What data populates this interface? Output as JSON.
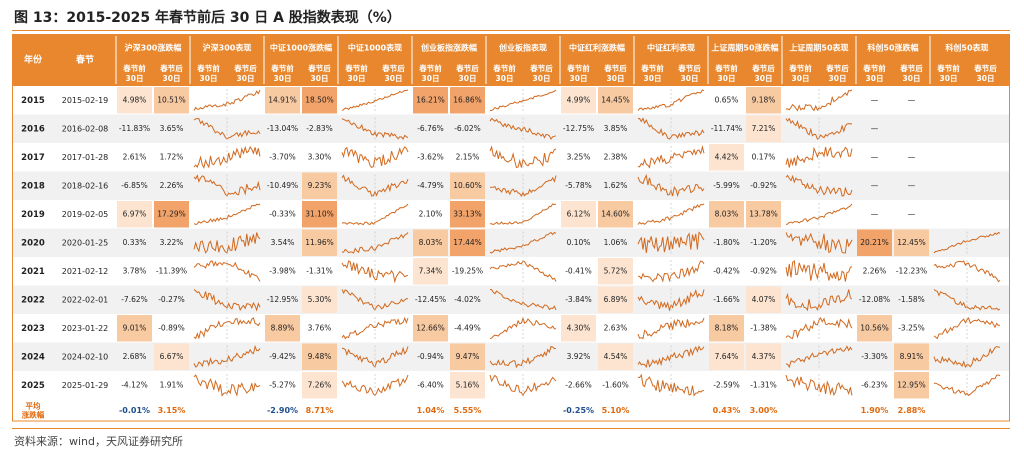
{
  "title": "图 13：2015-2025 年春节前后 30 日 A 股指数表现（%）",
  "source": "资料来源：wind，天风证券研究所",
  "colors": {
    "header_bg": "#e8872e",
    "header_text": "#ffffff",
    "stripe": "#f1f1f1",
    "heat_high": "#f2a36a",
    "heat_mid": "#f8caa2",
    "heat_low": "#fce4d0",
    "line": "#d2691e",
    "neg_text": "#1f4e8c",
    "pos_text": "#e06a10"
  },
  "table": {
    "col_year": "年份",
    "col_date": "春节",
    "groups": [
      {
        "name": "沪深300涨跌幅",
        "type": "pct"
      },
      {
        "name": "沪深300表现",
        "type": "spark"
      },
      {
        "name": "中证1000涨跌幅",
        "type": "pct"
      },
      {
        "name": "中证1000表现",
        "type": "spark"
      },
      {
        "name": "创业板指涨跌幅",
        "type": "pct"
      },
      {
        "name": "创业板指表现",
        "type": "spark"
      },
      {
        "name": "中证红利涨跌幅",
        "type": "pct"
      },
      {
        "name": "中证红利表现",
        "type": "spark"
      },
      {
        "name": "上证周期50涨跌幅",
        "type": "pct"
      },
      {
        "name": "上证周期50表现",
        "type": "spark"
      },
      {
        "name": "科创50涨跌幅",
        "type": "pct"
      },
      {
        "name": "科创50表现",
        "type": "spark"
      }
    ],
    "sub_before": "春节前30日",
    "sub_after": "春节后30日",
    "avg_label": "平均涨跌幅"
  },
  "chart_data": {
    "type": "table",
    "years": [
      "2015",
      "2016",
      "2017",
      "2018",
      "2019",
      "2020",
      "2021",
      "2022",
      "2023",
      "2024",
      "2025"
    ],
    "dates": [
      "2015-02-19",
      "2016-02-08",
      "2017-01-28",
      "2018-02-16",
      "2019-02-05",
      "2020-01-25",
      "2021-02-12",
      "2022-02-01",
      "2023-01-22",
      "2024-02-10",
      "2025-01-29"
    ],
    "series": [
      {
        "name": "沪深300",
        "before": [
          "4.98%",
          "-11.83%",
          "2.61%",
          "-6.85%",
          "6.97%",
          "0.33%",
          "3.78%",
          "-7.62%",
          "9.01%",
          "2.68%",
          "-4.12%"
        ],
        "after": [
          "10.51%",
          "3.65%",
          "1.72%",
          "2.26%",
          "17.29%",
          "3.22%",
          "-11.39%",
          "-0.27%",
          "-0.89%",
          "6.67%",
          "1.91%"
        ],
        "avg_before": "-0.01%",
        "avg_after": "3.15%"
      },
      {
        "name": "中证1000",
        "before": [
          "14.91%",
          "-13.04%",
          "-3.70%",
          "-10.49%",
          "-0.33%",
          "3.54%",
          "-3.98%",
          "-12.95%",
          "8.89%",
          "-9.42%",
          "-5.27%"
        ],
        "after": [
          "18.50%",
          "-2.83%",
          "3.30%",
          "9.23%",
          "31.10%",
          "11.96%",
          "-1.31%",
          "5.30%",
          "3.76%",
          "9.48%",
          "7.26%"
        ],
        "avg_before": "-2.90%",
        "avg_after": "8.71%"
      },
      {
        "name": "创业板指",
        "before": [
          "16.21%",
          "-6.76%",
          "-3.62%",
          "-4.79%",
          "2.10%",
          "8.03%",
          "7.34%",
          "-12.45%",
          "12.66%",
          "-0.94%",
          "-6.40%"
        ],
        "after": [
          "16.86%",
          "-6.02%",
          "2.15%",
          "10.60%",
          "33.13%",
          "17.44%",
          "-19.25%",
          "-4.02%",
          "-4.49%",
          "9.47%",
          "5.16%"
        ],
        "avg_before": "1.04%",
        "avg_after": "5.55%"
      },
      {
        "name": "中证红利",
        "before": [
          "4.99%",
          "-12.75%",
          "3.25%",
          "-5.78%",
          "6.12%",
          "0.10%",
          "-0.41%",
          "-3.84%",
          "4.30%",
          "3.92%",
          "-2.66%"
        ],
        "after": [
          "14.45%",
          "3.85%",
          "2.38%",
          "1.62%",
          "14.60%",
          "1.06%",
          "5.72%",
          "6.89%",
          "2.63%",
          "4.54%",
          "-1.60%"
        ],
        "avg_before": "-0.25%",
        "avg_after": "5.10%"
      },
      {
        "name": "上证周期50",
        "before": [
          "0.65%",
          "-11.74%",
          "4.42%",
          "-5.99%",
          "8.03%",
          "-1.80%",
          "-0.42%",
          "-1.66%",
          "8.18%",
          "7.64%",
          "-2.59%"
        ],
        "after": [
          "9.18%",
          "7.21%",
          "0.17%",
          "-0.92%",
          "13.78%",
          "-1.20%",
          "-0.92%",
          "4.07%",
          "-1.38%",
          "4.37%",
          "-1.31%"
        ],
        "avg_before": "0.43%",
        "avg_after": "3.00%"
      },
      {
        "name": "科创50",
        "before": [
          "—",
          "—",
          "—",
          "—",
          "—",
          "20.21%",
          "2.26%",
          "-12.08%",
          "10.56%",
          "-3.30%",
          "-6.23%"
        ],
        "after": [
          "—",
          "",
          "—",
          "—",
          "—",
          "12.45%",
          "-12.23%",
          "-1.58%",
          "-3.25%",
          "8.91%",
          "12.95%"
        ],
        "avg_before": "1.90%",
        "avg_after": "2.88%"
      }
    ]
  }
}
